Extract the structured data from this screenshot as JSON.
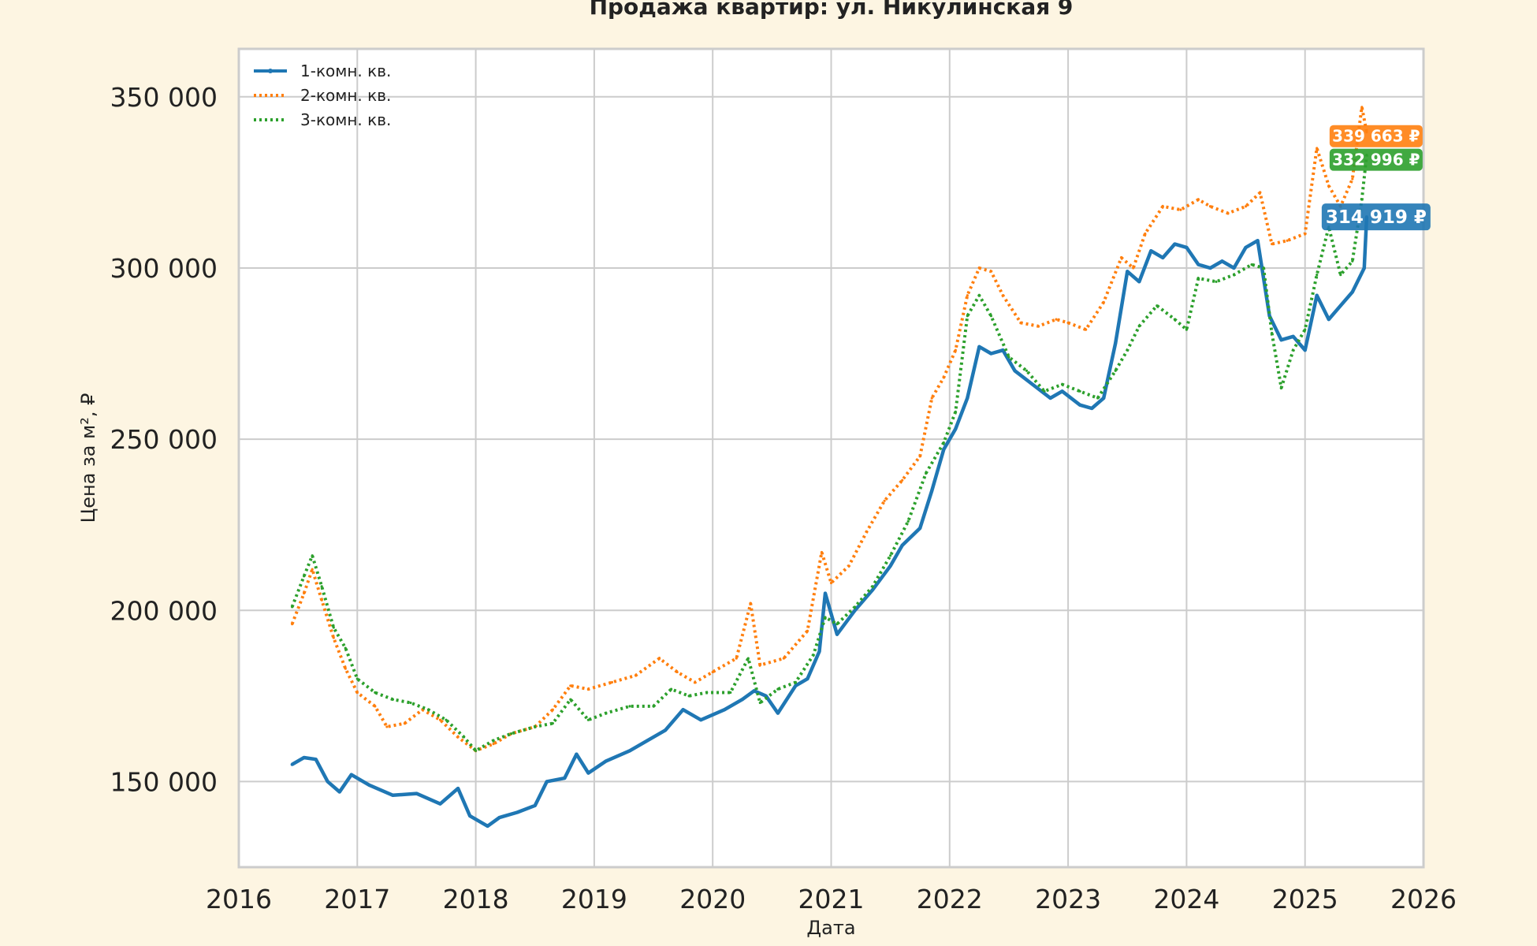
{
  "chart_data": {
    "type": "line",
    "title": "Продажа квартир: ул. Никулинская 9",
    "xlabel": "Дата",
    "ylabel": "Цена за м², ₽",
    "xlim": [
      2016.0,
      2026.0
    ],
    "ylim": [
      125000,
      364000
    ],
    "x_ticks": [
      "2016",
      "2017",
      "2018",
      "2019",
      "2020",
      "2021",
      "2022",
      "2023",
      "2024",
      "2025",
      "2026"
    ],
    "y_ticks": [
      "150 000",
      "200 000",
      "250 000",
      "300 000",
      "350 000"
    ],
    "grid": true,
    "legend_position": "top-left",
    "series": [
      {
        "name": "1-комн. кв.",
        "color": "#1f77b4",
        "style": "solid",
        "end_label": "314 919 ₽",
        "points": [
          [
            2016.45,
            155000
          ],
          [
            2016.55,
            157000
          ],
          [
            2016.65,
            156500
          ],
          [
            2016.75,
            150000
          ],
          [
            2016.85,
            147000
          ],
          [
            2016.95,
            152000
          ],
          [
            2017.1,
            149000
          ],
          [
            2017.3,
            146000
          ],
          [
            2017.5,
            146500
          ],
          [
            2017.7,
            143500
          ],
          [
            2017.85,
            148000
          ],
          [
            2017.95,
            140000
          ],
          [
            2018.1,
            137000
          ],
          [
            2018.2,
            139500
          ],
          [
            2018.35,
            141000
          ],
          [
            2018.5,
            143000
          ],
          [
            2018.6,
            150000
          ],
          [
            2018.75,
            151000
          ],
          [
            2018.85,
            158000
          ],
          [
            2018.95,
            152500
          ],
          [
            2019.1,
            156000
          ],
          [
            2019.3,
            159000
          ],
          [
            2019.45,
            162000
          ],
          [
            2019.6,
            165000
          ],
          [
            2019.75,
            171000
          ],
          [
            2019.9,
            168000
          ],
          [
            2020.1,
            171000
          ],
          [
            2020.25,
            174000
          ],
          [
            2020.35,
            176500
          ],
          [
            2020.45,
            175000
          ],
          [
            2020.55,
            170000
          ],
          [
            2020.7,
            178000
          ],
          [
            2020.8,
            180000
          ],
          [
            2020.9,
            188000
          ],
          [
            2020.95,
            205000
          ],
          [
            2021.05,
            193000
          ],
          [
            2021.2,
            200000
          ],
          [
            2021.35,
            206000
          ],
          [
            2021.5,
            213000
          ],
          [
            2021.6,
            219000
          ],
          [
            2021.75,
            224000
          ],
          [
            2021.85,
            235000
          ],
          [
            2021.95,
            247000
          ],
          [
            2022.05,
            253000
          ],
          [
            2022.15,
            262000
          ],
          [
            2022.25,
            277000
          ],
          [
            2022.35,
            275000
          ],
          [
            2022.45,
            276000
          ],
          [
            2022.55,
            270000
          ],
          [
            2022.7,
            266000
          ],
          [
            2022.85,
            262000
          ],
          [
            2022.95,
            264000
          ],
          [
            2023.1,
            260000
          ],
          [
            2023.2,
            259000
          ],
          [
            2023.3,
            262000
          ],
          [
            2023.4,
            278000
          ],
          [
            2023.5,
            299000
          ],
          [
            2023.6,
            296000
          ],
          [
            2023.7,
            305000
          ],
          [
            2023.8,
            303000
          ],
          [
            2023.9,
            307000
          ],
          [
            2024.0,
            306000
          ],
          [
            2024.1,
            301000
          ],
          [
            2024.2,
            300000
          ],
          [
            2024.3,
            302000
          ],
          [
            2024.4,
            300000
          ],
          [
            2024.5,
            306000
          ],
          [
            2024.6,
            308000
          ],
          [
            2024.7,
            286000
          ],
          [
            2024.8,
            279000
          ],
          [
            2024.9,
            280000
          ],
          [
            2025.0,
            276000
          ],
          [
            2025.1,
            292000
          ],
          [
            2025.2,
            285000
          ],
          [
            2025.3,
            289000
          ],
          [
            2025.4,
            293000
          ],
          [
            2025.5,
            300000
          ],
          [
            2025.52,
            314919
          ]
        ]
      },
      {
        "name": "2-комн. кв.",
        "color": "#ff7f0e",
        "style": "dotted",
        "end_label": "339 663 ₽",
        "points": [
          [
            2016.45,
            196000
          ],
          [
            2016.55,
            205000
          ],
          [
            2016.62,
            212000
          ],
          [
            2016.7,
            203000
          ],
          [
            2016.8,
            192000
          ],
          [
            2016.9,
            183000
          ],
          [
            2017.0,
            176000
          ],
          [
            2017.15,
            172000
          ],
          [
            2017.25,
            166000
          ],
          [
            2017.4,
            167000
          ],
          [
            2017.55,
            171000
          ],
          [
            2017.7,
            168000
          ],
          [
            2017.85,
            163000
          ],
          [
            2018.0,
            159000
          ],
          [
            2018.15,
            161000
          ],
          [
            2018.3,
            164000
          ],
          [
            2018.5,
            166000
          ],
          [
            2018.65,
            171000
          ],
          [
            2018.8,
            178000
          ],
          [
            2018.95,
            177000
          ],
          [
            2019.15,
            179000
          ],
          [
            2019.35,
            181000
          ],
          [
            2019.55,
            186000
          ],
          [
            2019.7,
            182000
          ],
          [
            2019.85,
            179000
          ],
          [
            2020.0,
            182000
          ],
          [
            2020.2,
            186000
          ],
          [
            2020.32,
            202000
          ],
          [
            2020.4,
            184000
          ],
          [
            2020.6,
            186000
          ],
          [
            2020.8,
            194000
          ],
          [
            2020.92,
            217000
          ],
          [
            2021.0,
            208000
          ],
          [
            2021.15,
            213000
          ],
          [
            2021.3,
            223000
          ],
          [
            2021.45,
            232000
          ],
          [
            2021.6,
            238000
          ],
          [
            2021.75,
            245000
          ],
          [
            2021.85,
            262000
          ],
          [
            2021.95,
            268000
          ],
          [
            2022.05,
            276000
          ],
          [
            2022.15,
            292000
          ],
          [
            2022.25,
            300000
          ],
          [
            2022.35,
            299000
          ],
          [
            2022.45,
            292000
          ],
          [
            2022.6,
            284000
          ],
          [
            2022.75,
            283000
          ],
          [
            2022.9,
            285000
          ],
          [
            2023.0,
            284000
          ],
          [
            2023.15,
            282000
          ],
          [
            2023.3,
            290000
          ],
          [
            2023.45,
            303000
          ],
          [
            2023.55,
            300000
          ],
          [
            2023.65,
            310000
          ],
          [
            2023.8,
            318000
          ],
          [
            2023.95,
            317000
          ],
          [
            2024.1,
            320000
          ],
          [
            2024.2,
            318000
          ],
          [
            2024.35,
            316000
          ],
          [
            2024.5,
            318000
          ],
          [
            2024.62,
            322000
          ],
          [
            2024.72,
            307000
          ],
          [
            2024.85,
            308000
          ],
          [
            2025.0,
            310000
          ],
          [
            2025.1,
            335000
          ],
          [
            2025.2,
            324000
          ],
          [
            2025.3,
            318000
          ],
          [
            2025.4,
            326000
          ],
          [
            2025.48,
            347000
          ],
          [
            2025.52,
            339663
          ]
        ]
      },
      {
        "name": "3-комн. кв.",
        "color": "#2ca02c",
        "style": "dotted",
        "end_label": "332 996 ₽",
        "points": [
          [
            2016.45,
            201000
          ],
          [
            2016.55,
            210000
          ],
          [
            2016.62,
            216000
          ],
          [
            2016.7,
            207000
          ],
          [
            2016.8,
            195000
          ],
          [
            2016.9,
            189000
          ],
          [
            2017.0,
            180000
          ],
          [
            2017.15,
            176000
          ],
          [
            2017.3,
            174000
          ],
          [
            2017.45,
            173000
          ],
          [
            2017.6,
            171000
          ],
          [
            2017.75,
            168000
          ],
          [
            2017.9,
            163000
          ],
          [
            2018.0,
            159000
          ],
          [
            2018.15,
            162000
          ],
          [
            2018.3,
            164000
          ],
          [
            2018.5,
            166000
          ],
          [
            2018.65,
            167000
          ],
          [
            2018.8,
            174000
          ],
          [
            2018.95,
            168000
          ],
          [
            2019.1,
            170000
          ],
          [
            2019.3,
            172000
          ],
          [
            2019.5,
            172000
          ],
          [
            2019.65,
            177000
          ],
          [
            2019.8,
            175000
          ],
          [
            2019.95,
            176000
          ],
          [
            2020.15,
            176000
          ],
          [
            2020.3,
            186000
          ],
          [
            2020.4,
            173000
          ],
          [
            2020.55,
            177000
          ],
          [
            2020.7,
            179000
          ],
          [
            2020.85,
            187000
          ],
          [
            2020.95,
            198000
          ],
          [
            2021.05,
            196000
          ],
          [
            2021.2,
            201000
          ],
          [
            2021.35,
            207000
          ],
          [
            2021.5,
            216000
          ],
          [
            2021.65,
            226000
          ],
          [
            2021.8,
            240000
          ],
          [
            2021.95,
            249000
          ],
          [
            2022.05,
            258000
          ],
          [
            2022.15,
            286000
          ],
          [
            2022.25,
            292000
          ],
          [
            2022.35,
            286000
          ],
          [
            2022.5,
            274000
          ],
          [
            2022.65,
            270000
          ],
          [
            2022.8,
            264000
          ],
          [
            2022.95,
            266000
          ],
          [
            2023.1,
            264000
          ],
          [
            2023.25,
            262000
          ],
          [
            2023.4,
            270000
          ],
          [
            2023.5,
            276000
          ],
          [
            2023.6,
            283000
          ],
          [
            2023.75,
            289000
          ],
          [
            2023.9,
            285000
          ],
          [
            2024.0,
            282000
          ],
          [
            2024.1,
            297000
          ],
          [
            2024.25,
            296000
          ],
          [
            2024.4,
            298000
          ],
          [
            2024.55,
            301000
          ],
          [
            2024.65,
            300000
          ],
          [
            2024.72,
            281000
          ],
          [
            2024.8,
            265000
          ],
          [
            2024.9,
            276000
          ],
          [
            2025.0,
            282000
          ],
          [
            2025.1,
            298000
          ],
          [
            2025.2,
            312000
          ],
          [
            2025.3,
            298000
          ],
          [
            2025.4,
            302000
          ],
          [
            2025.48,
            320000
          ],
          [
            2025.52,
            332996
          ]
        ]
      }
    ]
  }
}
